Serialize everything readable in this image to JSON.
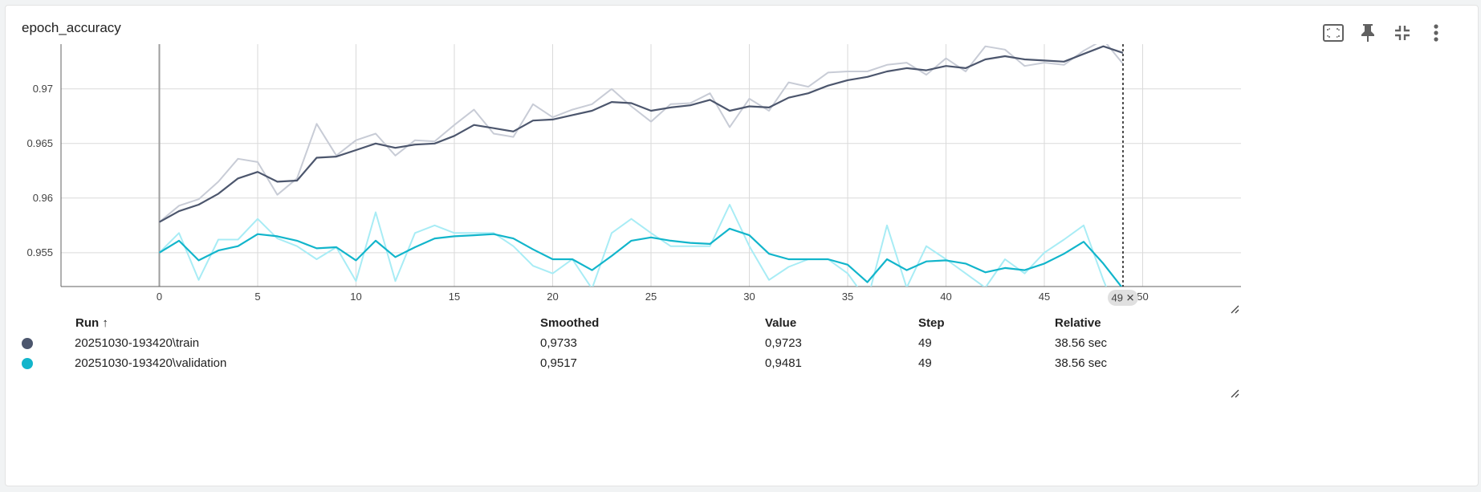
{
  "card_title": "epoch_accuracy",
  "toolbar": {
    "icons": [
      "fit-domain-icon",
      "pin-icon",
      "collapse-icon",
      "more-vert-icon"
    ]
  },
  "colors": {
    "train": "#4c566d",
    "train_raw": "#c8ccd6",
    "validation": "#12b5cb",
    "validation_raw": "#a8ecf5"
  },
  "chart_data": {
    "type": "line",
    "title": "epoch_accuracy",
    "xlabel": "",
    "ylabel": "",
    "xlim": [
      -5,
      55
    ],
    "ylim": [
      0.9519,
      0.9741
    ],
    "x_ticks": [
      0,
      5,
      10,
      15,
      20,
      25,
      30,
      35,
      40,
      45,
      50
    ],
    "y_ticks": [
      0.955,
      0.96,
      0.965,
      0.97
    ],
    "y_tick_labels": [
      "0.955",
      "0.96",
      "0.965",
      "0.97"
    ],
    "grid": true,
    "cursor_step": 49,
    "series": [
      {
        "name": "20251030-193420\\train",
        "kind": "raw",
        "x": [
          0,
          1,
          2,
          3,
          4,
          5,
          6,
          7,
          8,
          9,
          10,
          11,
          12,
          13,
          14,
          15,
          16,
          17,
          18,
          19,
          20,
          21,
          22,
          23,
          24,
          25,
          26,
          27,
          28,
          29,
          30,
          31,
          32,
          33,
          34,
          35,
          36,
          37,
          38,
          39,
          40,
          41,
          42,
          43,
          44,
          45,
          46,
          47,
          48,
          49
        ],
        "values": [
          0.9578,
          0.9593,
          0.9599,
          0.9615,
          0.9636,
          0.9633,
          0.9603,
          0.9618,
          0.9668,
          0.9639,
          0.9653,
          0.9659,
          0.9639,
          0.9653,
          0.9652,
          0.9667,
          0.9681,
          0.9659,
          0.9656,
          0.9686,
          0.9674,
          0.9681,
          0.9686,
          0.97,
          0.9684,
          0.967,
          0.9686,
          0.9687,
          0.9696,
          0.9665,
          0.9691,
          0.968,
          0.9706,
          0.9702,
          0.9715,
          0.9716,
          0.9716,
          0.9722,
          0.9724,
          0.9713,
          0.9728,
          0.9716,
          0.9739,
          0.9736,
          0.9721,
          0.9724,
          0.9722,
          0.9735,
          0.9745,
          0.9723
        ]
      },
      {
        "name": "20251030-193420\\train",
        "kind": "smoothed",
        "x": [
          0,
          1,
          2,
          3,
          4,
          5,
          6,
          7,
          8,
          9,
          10,
          11,
          12,
          13,
          14,
          15,
          16,
          17,
          18,
          19,
          20,
          21,
          22,
          23,
          24,
          25,
          26,
          27,
          28,
          29,
          30,
          31,
          32,
          33,
          34,
          35,
          36,
          37,
          38,
          39,
          40,
          41,
          42,
          43,
          44,
          45,
          46,
          47,
          48,
          49
        ],
        "values": [
          0.9578,
          0.9588,
          0.9594,
          0.9604,
          0.9618,
          0.9624,
          0.9615,
          0.9616,
          0.9637,
          0.9638,
          0.9644,
          0.965,
          0.9646,
          0.9649,
          0.965,
          0.9657,
          0.9667,
          0.9664,
          0.9661,
          0.9671,
          0.9672,
          0.9676,
          0.968,
          0.9688,
          0.9687,
          0.968,
          0.9683,
          0.9685,
          0.969,
          0.968,
          0.9684,
          0.9683,
          0.9692,
          0.9696,
          0.9703,
          0.9708,
          0.9711,
          0.9716,
          0.9719,
          0.9717,
          0.9721,
          0.9719,
          0.9727,
          0.973,
          0.9727,
          0.9726,
          0.9725,
          0.9732,
          0.9739,
          0.9733
        ]
      },
      {
        "name": "20251030-193420\\validation",
        "kind": "raw",
        "x": [
          0,
          1,
          2,
          3,
          4,
          5,
          6,
          7,
          8,
          9,
          10,
          11,
          12,
          13,
          14,
          15,
          16,
          17,
          18,
          19,
          20,
          21,
          22,
          23,
          24,
          25,
          26,
          27,
          28,
          29,
          30,
          31,
          32,
          33,
          34,
          35,
          36,
          37,
          38,
          39,
          40,
          41,
          42,
          43,
          44,
          45,
          46,
          47,
          48,
          49
        ],
        "values": [
          0.955,
          0.9568,
          0.9525,
          0.9562,
          0.9562,
          0.9581,
          0.9563,
          0.9556,
          0.9544,
          0.9555,
          0.9524,
          0.9587,
          0.9524,
          0.9568,
          0.9575,
          0.9568,
          0.9568,
          0.9568,
          0.9556,
          0.9538,
          0.9531,
          0.9544,
          0.9517,
          0.9568,
          0.9581,
          0.9568,
          0.9556,
          0.9556,
          0.9556,
          0.9594,
          0.9556,
          0.9525,
          0.9537,
          0.9544,
          0.9544,
          0.9531,
          0.9506,
          0.9575,
          0.9518,
          0.9556,
          0.9544,
          0.9531,
          0.9518,
          0.9544,
          0.9531,
          0.955,
          0.9562,
          0.9575,
          0.9525,
          0.9481
        ]
      },
      {
        "name": "20251030-193420\\validation",
        "kind": "smoothed",
        "x": [
          0,
          1,
          2,
          3,
          4,
          5,
          6,
          7,
          8,
          9,
          10,
          11,
          12,
          13,
          14,
          15,
          16,
          17,
          18,
          19,
          20,
          21,
          22,
          23,
          24,
          25,
          26,
          27,
          28,
          29,
          30,
          31,
          32,
          33,
          34,
          35,
          36,
          37,
          38,
          39,
          40,
          41,
          42,
          43,
          44,
          45,
          46,
          47,
          48,
          49
        ],
        "values": [
          0.955,
          0.9561,
          0.9543,
          0.9552,
          0.9556,
          0.9567,
          0.9565,
          0.9561,
          0.9554,
          0.9555,
          0.9543,
          0.9561,
          0.9546,
          0.9555,
          0.9563,
          0.9565,
          0.9566,
          0.9567,
          0.9563,
          0.9553,
          0.9544,
          0.9544,
          0.9534,
          0.9547,
          0.9561,
          0.9564,
          0.9561,
          0.9559,
          0.9558,
          0.9572,
          0.9566,
          0.9549,
          0.9544,
          0.9544,
          0.9544,
          0.9539,
          0.9523,
          0.9544,
          0.9534,
          0.9542,
          0.9543,
          0.954,
          0.9532,
          0.9536,
          0.9534,
          0.954,
          0.9549,
          0.956,
          0.954,
          0.9517
        ]
      }
    ]
  },
  "legend_table": {
    "headers": {
      "run": "Run ↑",
      "smoothed": "Smoothed",
      "value": "Value",
      "step": "Step",
      "relative": "Relative"
    },
    "rows": [
      {
        "run": "20251030-193420\\train",
        "smoothed": "0,9733",
        "value": "0,9723",
        "step": "49",
        "relative": "38.56 sec",
        "color": "#4c566d"
      },
      {
        "run": "20251030-193420\\validation",
        "smoothed": "0,9517",
        "value": "0,9481",
        "step": "49",
        "relative": "38.56 sec",
        "color": "#12b5cb"
      }
    ]
  },
  "step_badge": "49 ✕"
}
